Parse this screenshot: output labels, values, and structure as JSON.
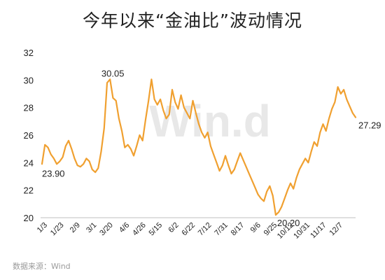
{
  "title": "今年以来“金油比”波动情况",
  "source": "数据来源：Wind",
  "watermark": "Win.d",
  "colors": {
    "line": "#F0A030",
    "watermark": "#e8e8e8",
    "axis": "#bfbfbf",
    "text": "#222222"
  },
  "chart_data": {
    "type": "line",
    "title": "今年以来“金油比”波动情况",
    "ylim": [
      20,
      32
    ],
    "yticks": [
      20,
      22,
      24,
      26,
      28,
      30,
      32
    ],
    "grid": false,
    "xticks": [
      "1/3",
      "1/23",
      "2/9",
      "3/1",
      "3/20",
      "4/6",
      "4/26",
      "5/15",
      "6/2",
      "6/22",
      "7/12",
      "7/31",
      "8/17",
      "9/6",
      "9/25",
      "10/12",
      "10/31",
      "11/17",
      "12/7"
    ],
    "series": [
      {
        "values": [
          23.9,
          25.3,
          25.1,
          24.6,
          24.3,
          23.9,
          24.1,
          24.4,
          25.2,
          25.6,
          25.0,
          24.3,
          23.8,
          23.7,
          23.9,
          24.3,
          24.1,
          23.5,
          23.3,
          23.6,
          24.8,
          26.5,
          29.8,
          30.05,
          28.7,
          28.5,
          27.2,
          26.3,
          25.1,
          25.3,
          25.0,
          24.5,
          25.2,
          26.0,
          25.6,
          27.1,
          28.5,
          30.05,
          28.6,
          28.2,
          28.6,
          27.8,
          27.2,
          27.5,
          29.3,
          28.4,
          27.9,
          28.9,
          28.0,
          27.6,
          27.2,
          28.5,
          27.6,
          26.8,
          26.2,
          25.8,
          26.2,
          25.2,
          24.6,
          24.0,
          23.4,
          23.8,
          24.5,
          23.8,
          23.2,
          23.5,
          24.1,
          24.7,
          24.2,
          23.7,
          23.2,
          22.7,
          22.2,
          21.7,
          21.4,
          21.2,
          21.9,
          22.3,
          21.6,
          20.2,
          20.4,
          20.8,
          21.4,
          22.0,
          22.5,
          22.1,
          22.9,
          23.5,
          23.9,
          24.3,
          24.0,
          24.8,
          25.5,
          25.2,
          26.2,
          26.8,
          26.3,
          27.2,
          27.9,
          28.4,
          29.5,
          29.0,
          29.3,
          28.6,
          28.1,
          27.6,
          27.29
        ]
      }
    ],
    "annotations": [
      {
        "text": "23.90",
        "x": 0,
        "y": 23.9
      },
      {
        "text": "30.05",
        "x": 23,
        "y": 30.05
      },
      {
        "text": "20.20",
        "x": 79,
        "y": 20.2
      },
      {
        "text": "27.29",
        "x": 106,
        "y": 27.29
      }
    ]
  }
}
